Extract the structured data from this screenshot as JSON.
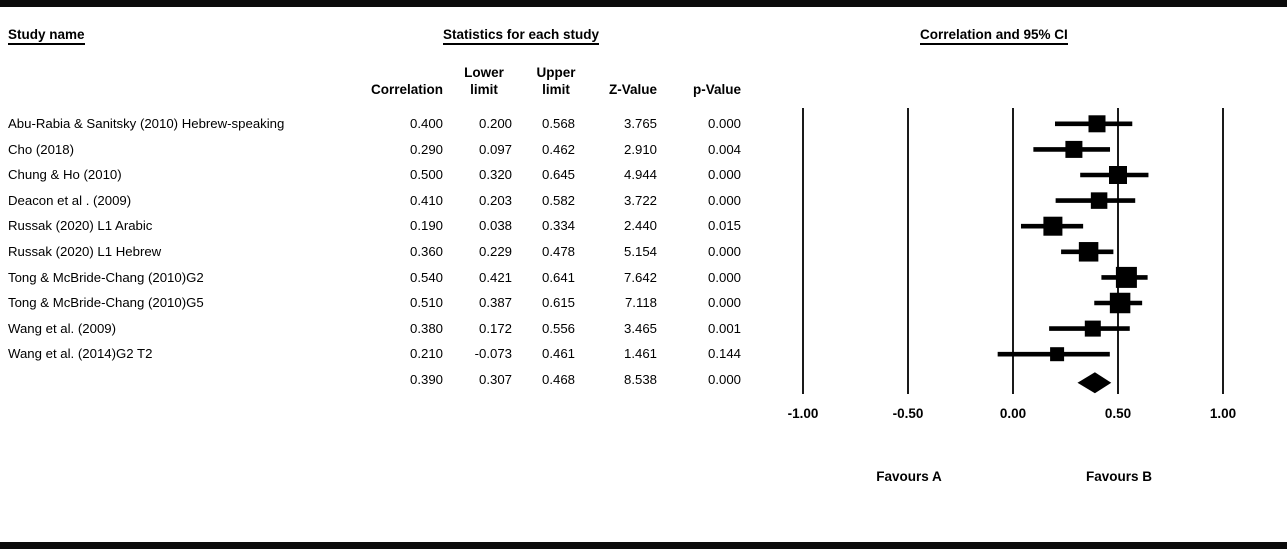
{
  "headers": {
    "study_name": "Study name",
    "statistics": "Statistics for each study",
    "ci": "Correlation and 95% CI"
  },
  "columns": {
    "correlation": "Correlation",
    "lower": "Lower\nlimit",
    "upper": "Upper\nlimit",
    "z_value": "Z-Value",
    "p_value": "p-Value"
  },
  "chart_data": {
    "type": "forest",
    "title": "Correlation and 95% CI",
    "axis": {
      "xlim": [
        -1.0,
        1.0
      ],
      "ticks": [
        -1.0,
        -0.5,
        0.0,
        0.5,
        1.0
      ],
      "tick_labels": [
        "-1.00",
        "-0.50",
        "0.00",
        "0.50",
        "1.00"
      ]
    },
    "favours_left": "Favours A",
    "favours_right": "Favours B",
    "studies": [
      {
        "name": "Abu-Rabia & Sanitsky (2010) Hebrew-speaking",
        "correlation": "0.400",
        "lower": "0.200",
        "upper": "0.568",
        "z": "3.765",
        "p": "0.000",
        "marker_size": 17
      },
      {
        "name": "Cho (2018)",
        "correlation": "0.290",
        "lower": "0.097",
        "upper": "0.462",
        "z": "2.910",
        "p": "0.004",
        "marker_size": 17
      },
      {
        "name": "Chung & Ho (2010)",
        "correlation": "0.500",
        "lower": "0.320",
        "upper": "0.645",
        "z": "4.944",
        "p": "0.000",
        "marker_size": 18
      },
      {
        "name": "Deacon et al . (2009)",
        "correlation": "0.410",
        "lower": "0.203",
        "upper": "0.582",
        "z": "3.722",
        "p": "0.000",
        "marker_size": 16.5
      },
      {
        "name": "Russak (2020) L1 Arabic",
        "correlation": "0.190",
        "lower": "0.038",
        "upper": "0.334",
        "z": "2.440",
        "p": "0.015",
        "marker_size": 19
      },
      {
        "name": "Russak (2020) L1 Hebrew",
        "correlation": "0.360",
        "lower": "0.229",
        "upper": "0.478",
        "z": "5.154",
        "p": "0.000",
        "marker_size": 19.5
      },
      {
        "name": "Tong & McBride-Chang (2010)G2",
        "correlation": "0.540",
        "lower": "0.421",
        "upper": "0.641",
        "z": "7.642",
        "p": "0.000",
        "marker_size": 21
      },
      {
        "name": "Tong & McBride-Chang (2010)G5",
        "correlation": "0.510",
        "lower": "0.387",
        "upper": "0.615",
        "z": "7.118",
        "p": "0.000",
        "marker_size": 20.5
      },
      {
        "name": "Wang et al. (2009)",
        "correlation": "0.380",
        "lower": "0.172",
        "upper": "0.556",
        "z": "3.465",
        "p": "0.001",
        "marker_size": 16
      },
      {
        "name": "Wang et al. (2014)G2 T2",
        "correlation": "0.210",
        "lower": "-0.073",
        "upper": "0.461",
        "z": "1.461",
        "p": "0.144",
        "marker_size": 14
      }
    ],
    "summary": {
      "name": "",
      "correlation": "0.390",
      "lower": "0.307",
      "upper": "0.468",
      "z": "8.538",
      "p": "0.000"
    }
  },
  "colors": {
    "ink": "#000000",
    "background": "#ffffff"
  }
}
